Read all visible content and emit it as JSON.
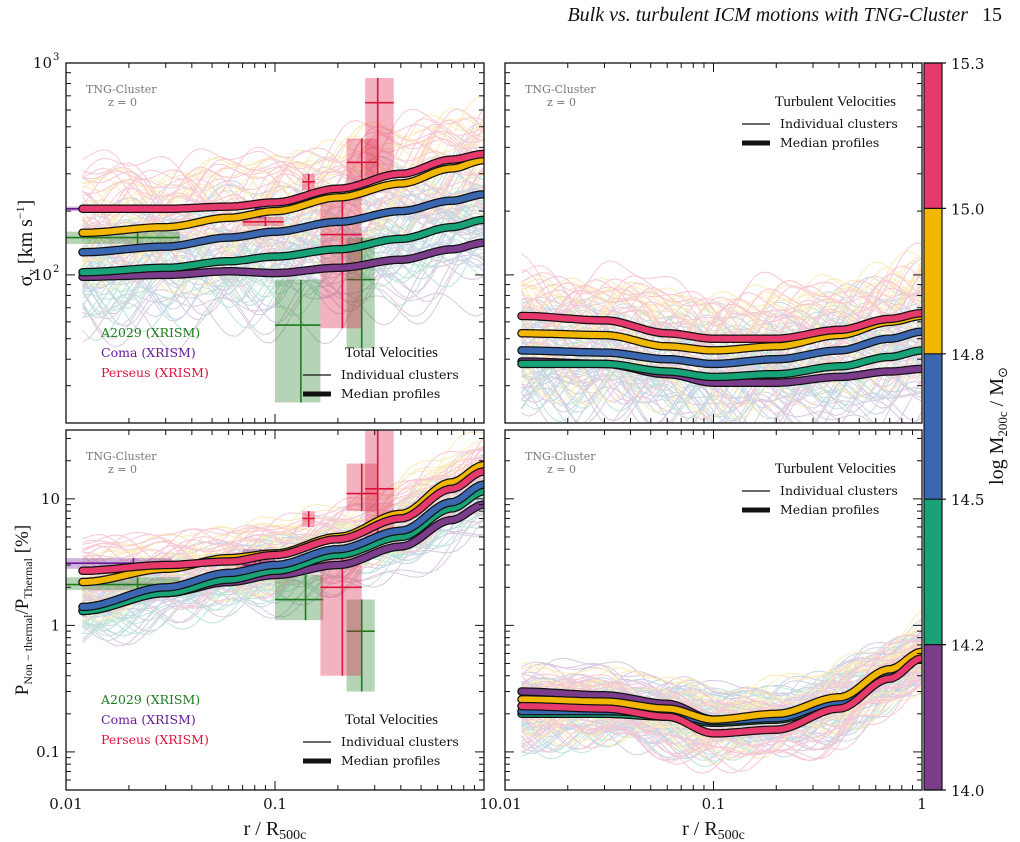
{
  "header": {
    "title": "Bulk vs. turbulent ICM motions with TNG-Cluster",
    "page_number": "15"
  },
  "colorbar": {
    "label": "log M200c / M⊙",
    "ticks": [
      "14.0",
      "14.2",
      "14.5",
      "14.8",
      "15.0",
      "15.3"
    ],
    "bins": [
      {
        "from": 14.0,
        "to": 14.2,
        "color": "#7b3c8c"
      },
      {
        "from": 14.2,
        "to": 14.5,
        "color": "#17a377"
      },
      {
        "from": 14.5,
        "to": 14.8,
        "color": "#3a67b0"
      },
      {
        "from": 14.8,
        "to": 15.0,
        "color": "#f2b700"
      },
      {
        "from": 15.0,
        "to": 15.3,
        "color": "#e63a6d"
      }
    ]
  },
  "shared": {
    "sim_label": "TNG-Cluster",
    "redshift_label": "z = 0",
    "xlabel": "r / R500c",
    "xticks": [
      "0.01",
      "0.1",
      "1"
    ],
    "legend_individual": "Individual clusters",
    "legend_median": "Median profiles"
  },
  "chart_data": [
    {
      "id": "top-left",
      "type": "line",
      "scale": "log",
      "title": "Total Velocities",
      "ylabel": "σv [km s−1]",
      "xlim": [
        0.01,
        1
      ],
      "ylim": [
        20,
        1000
      ],
      "yticks": [
        "10^2",
        "10^3"
      ],
      "series": [
        {
          "bin": "14.0-14.2",
          "color": "#7b3c8c",
          "x": [
            0.012,
            0.03,
            0.06,
            0.1,
            0.2,
            0.4,
            0.7,
            1.0
          ],
          "y": [
            98,
            100,
            104,
            102,
            108,
            118,
            132,
            142
          ]
        },
        {
          "bin": "14.2-14.5",
          "color": "#17a377",
          "x": [
            0.012,
            0.03,
            0.06,
            0.1,
            0.2,
            0.4,
            0.7,
            1.0
          ],
          "y": [
            103,
            108,
            116,
            122,
            132,
            148,
            168,
            182
          ]
        },
        {
          "bin": "14.5-14.8",
          "color": "#3a67b0",
          "x": [
            0.012,
            0.03,
            0.06,
            0.1,
            0.2,
            0.4,
            0.7,
            1.0
          ],
          "y": [
            128,
            136,
            150,
            160,
            178,
            200,
            224,
            240
          ]
        },
        {
          "bin": "14.8-15.0",
          "color": "#f2b700",
          "x": [
            0.012,
            0.03,
            0.06,
            0.1,
            0.2,
            0.4,
            0.7,
            1.0
          ],
          "y": [
            158,
            168,
            186,
            200,
            232,
            270,
            318,
            348
          ]
        },
        {
          "bin": "15.0-15.3",
          "color": "#e63a6d",
          "x": [
            0.012,
            0.03,
            0.06,
            0.1,
            0.2,
            0.4,
            0.7,
            1.0
          ],
          "y": [
            205,
            205,
            210,
            220,
            255,
            300,
            350,
            372
          ]
        }
      ],
      "observations": [
        {
          "label": "A2029 (XRISM)",
          "color": "#1e7b1e",
          "points": [
            {
              "x": 0.022,
              "y": 150,
              "xerr": [
                0.01,
                0.035
              ],
              "yerr": [
                140,
                160
              ]
            },
            {
              "x": 0.133,
              "y": 58,
              "xerr": [
                0.1,
                0.165
              ],
              "yerr": [
                25,
                95
              ]
            },
            {
              "x": 0.26,
              "y": 95,
              "xerr": [
                0.22,
                0.3
              ],
              "yerr": [
                45,
                150
              ]
            }
          ]
        },
        {
          "label": "Coma (XRISM)",
          "color": "#6a1b9a",
          "points": [
            {
              "x": 0.021,
              "y": 205,
              "xerr": [
                0.01,
                0.032
              ],
              "yerr": [
                200,
                210
              ]
            },
            {
              "x": 0.085,
              "y": 205,
              "xerr": [
                0.08,
                0.09
              ],
              "yerr": [
                185,
                225
              ]
            }
          ]
        },
        {
          "label": "Perseus (XRISM)",
          "color": "#dc143c",
          "points": [
            {
              "x": 0.09,
              "y": 178,
              "xerr": [
                0.07,
                0.11
              ],
              "yerr": [
                170,
                188
              ]
            },
            {
              "x": 0.145,
              "y": 275,
              "xerr": [
                0.135,
                0.155
              ],
              "yerr": [
                250,
                300
              ]
            },
            {
              "x": 0.21,
              "y": 155,
              "xerr": [
                0.165,
                0.26
              ],
              "yerr": [
                56,
                240
              ]
            },
            {
              "x": 0.26,
              "y": 340,
              "xerr": [
                0.22,
                0.31
              ],
              "yerr": [
                270,
                440
              ]
            },
            {
              "x": 0.31,
              "y": 650,
              "xerr": [
                0.27,
                0.37
              ],
              "yerr": [
                290,
                850
              ]
            }
          ]
        }
      ]
    },
    {
      "id": "top-right",
      "type": "line",
      "scale": "log",
      "title": "Turbulent Velocities",
      "xlim": [
        0.01,
        1
      ],
      "ylim": [
        20,
        1000
      ],
      "series": [
        {
          "bin": "14.0-14.2",
          "color": "#7b3c8c",
          "x": [
            0.012,
            0.03,
            0.06,
            0.1,
            0.2,
            0.4,
            0.7,
            1.0
          ],
          "y": [
            39,
            38,
            34,
            31,
            31,
            33,
            35,
            36
          ]
        },
        {
          "bin": "14.2-14.5",
          "color": "#17a377",
          "x": [
            0.012,
            0.03,
            0.06,
            0.1,
            0.2,
            0.4,
            0.7,
            1.0
          ],
          "y": [
            38,
            38,
            35,
            33,
            34,
            37,
            41,
            44
          ]
        },
        {
          "bin": "14.5-14.8",
          "color": "#3a67b0",
          "x": [
            0.012,
            0.03,
            0.06,
            0.1,
            0.2,
            0.4,
            0.7,
            1.0
          ],
          "y": [
            44,
            43,
            40,
            38,
            40,
            44,
            50,
            54
          ]
        },
        {
          "bin": "14.8-15.0",
          "color": "#f2b700",
          "x": [
            0.012,
            0.03,
            0.06,
            0.1,
            0.2,
            0.4,
            0.7,
            1.0
          ],
          "y": [
            53,
            52,
            46,
            44,
            46,
            52,
            60,
            64
          ]
        },
        {
          "bin": "15.0-15.3",
          "color": "#e63a6d",
          "x": [
            0.012,
            0.03,
            0.06,
            0.1,
            0.2,
            0.4,
            0.7,
            1.0
          ],
          "y": [
            64,
            61,
            53,
            50,
            50,
            55,
            62,
            66
          ]
        }
      ]
    },
    {
      "id": "bottom-left",
      "type": "line",
      "scale": "log",
      "title": "Total Velocities",
      "ylabel": "PNon−thermal/PThermal [%]",
      "xlim": [
        0.01,
        1
      ],
      "ylim": [
        0.05,
        35
      ],
      "yticks": [
        "0.1",
        "1",
        "10"
      ],
      "series": [
        {
          "bin": "14.0-14.2",
          "color": "#7b3c8c",
          "x": [
            0.012,
            0.03,
            0.06,
            0.1,
            0.2,
            0.4,
            0.7,
            1.0
          ],
          "y": [
            1.3,
            1.8,
            2.2,
            2.5,
            3.0,
            4.2,
            6.8,
            9.0
          ]
        },
        {
          "bin": "14.2-14.5",
          "color": "#17a377",
          "x": [
            0.012,
            0.03,
            0.06,
            0.1,
            0.2,
            0.4,
            0.7,
            1.0
          ],
          "y": [
            1.3,
            1.8,
            2.3,
            2.7,
            3.6,
            5.0,
            8.4,
            11.5
          ]
        },
        {
          "bin": "14.5-14.8",
          "color": "#3a67b0",
          "x": [
            0.012,
            0.03,
            0.06,
            0.1,
            0.2,
            0.4,
            0.7,
            1.0
          ],
          "y": [
            1.4,
            2.0,
            2.6,
            3.0,
            4.0,
            5.6,
            9.4,
            13.0
          ]
        },
        {
          "bin": "14.8-15.0",
          "color": "#f2b700",
          "x": [
            0.012,
            0.03,
            0.06,
            0.1,
            0.2,
            0.4,
            0.7,
            1.0
          ],
          "y": [
            2.2,
            2.8,
            3.4,
            3.7,
            5.0,
            7.6,
            13.5,
            18.5
          ]
        },
        {
          "bin": "15.0-15.3",
          "color": "#e63a6d",
          "x": [
            0.012,
            0.03,
            0.06,
            0.1,
            0.2,
            0.4,
            0.7,
            1.0
          ],
          "y": [
            2.7,
            3.0,
            3.2,
            3.6,
            4.8,
            7.0,
            12.0,
            16.5
          ]
        }
      ],
      "observations": [
        {
          "label": "A2029 (XRISM)",
          "color": "#1e7b1e",
          "points": [
            {
              "x": 0.022,
              "y": 2.1,
              "xerr": [
                0.01,
                0.035
              ],
              "yerr": [
                1.9,
                2.4
              ]
            },
            {
              "x": 0.14,
              "y": 1.6,
              "xerr": [
                0.1,
                0.17
              ],
              "yerr": [
                1.1,
                2.5
              ]
            },
            {
              "x": 0.26,
              "y": 0.9,
              "xerr": [
                0.22,
                0.3
              ],
              "yerr": [
                0.3,
                1.6
              ]
            }
          ]
        },
        {
          "label": "Coma (XRISM)",
          "color": "#6a1b9a",
          "points": [
            {
              "x": 0.021,
              "y": 3.1,
              "xerr": [
                0.01,
                0.032
              ],
              "yerr": [
                2.8,
                3.4
              ]
            },
            {
              "x": 0.085,
              "y": 3.0,
              "xerr": [
                0.07,
                0.1
              ],
              "yerr": [
                2.4,
                4.0
              ]
            }
          ]
        },
        {
          "label": "Perseus (XRISM)",
          "color": "#dc143c",
          "points": [
            {
              "x": 0.08,
              "y": 2.8,
              "xerr": [
                0.065,
                0.1
              ],
              "yerr": [
                2.3,
                3.4
              ]
            },
            {
              "x": 0.145,
              "y": 7.0,
              "xerr": [
                0.135,
                0.155
              ],
              "yerr": [
                6.0,
                8.0
              ]
            },
            {
              "x": 0.21,
              "y": 2.0,
              "xerr": [
                0.165,
                0.26
              ],
              "yerr": [
                0.4,
                3.8
              ]
            },
            {
              "x": 0.26,
              "y": 11.0,
              "xerr": [
                0.22,
                0.31
              ],
              "yerr": [
                8.0,
                19.0
              ]
            },
            {
              "x": 0.31,
              "y": 12.0,
              "xerr": [
                0.27,
                0.37
              ],
              "yerr": [
                5.0,
                35.0
              ]
            }
          ]
        }
      ]
    },
    {
      "id": "bottom-right",
      "type": "line",
      "scale": "log",
      "title": "Turbulent Velocities",
      "xlim": [
        0.01,
        1
      ],
      "ylim": [
        0.05,
        35
      ],
      "series": [
        {
          "bin": "14.0-14.2",
          "color": "#7b3c8c",
          "x": [
            0.012,
            0.03,
            0.06,
            0.1,
            0.2,
            0.4,
            0.7,
            1.0
          ],
          "y": [
            0.3,
            0.28,
            0.24,
            0.18,
            0.19,
            0.25,
            0.4,
            0.55
          ]
        },
        {
          "bin": "14.2-14.5",
          "color": "#17a377",
          "x": [
            0.012,
            0.03,
            0.06,
            0.1,
            0.2,
            0.4,
            0.7,
            1.0
          ],
          "y": [
            0.2,
            0.2,
            0.19,
            0.17,
            0.18,
            0.24,
            0.4,
            0.57
          ]
        },
        {
          "bin": "14.5-14.8",
          "color": "#3a67b0",
          "x": [
            0.012,
            0.03,
            0.06,
            0.1,
            0.2,
            0.4,
            0.7,
            1.0
          ],
          "y": [
            0.21,
            0.21,
            0.2,
            0.175,
            0.185,
            0.25,
            0.42,
            0.6
          ]
        },
        {
          "bin": "14.8-15.0",
          "color": "#f2b700",
          "x": [
            0.012,
            0.03,
            0.06,
            0.1,
            0.2,
            0.4,
            0.7,
            1.0
          ],
          "y": [
            0.26,
            0.25,
            0.22,
            0.18,
            0.2,
            0.27,
            0.45,
            0.62
          ]
        },
        {
          "bin": "15.0-15.3",
          "color": "#e63a6d",
          "x": [
            0.012,
            0.03,
            0.06,
            0.1,
            0.2,
            0.4,
            0.7,
            1.0
          ],
          "y": [
            0.23,
            0.22,
            0.19,
            0.14,
            0.15,
            0.22,
            0.38,
            0.55
          ]
        }
      ]
    }
  ]
}
